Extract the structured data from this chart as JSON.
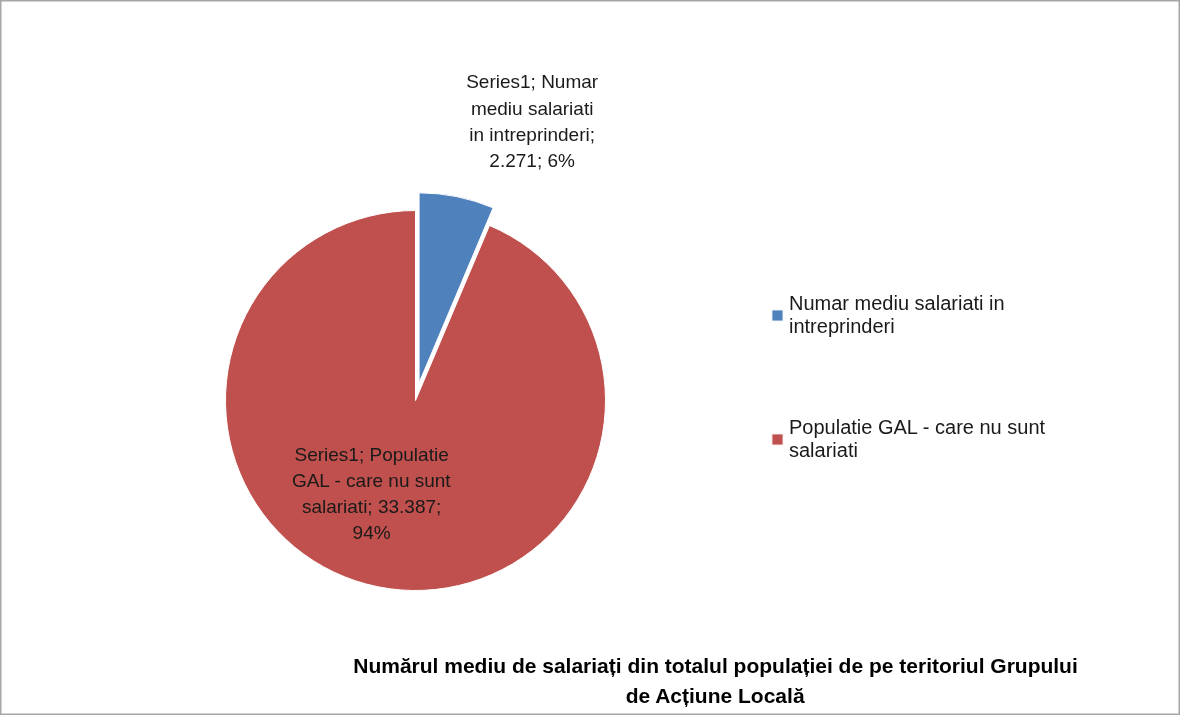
{
  "chart_data": {
    "type": "pie",
    "title": "Numărul mediu de salariați din totalul populației de pe teritoriul Grupului de Acțiune Locală",
    "categories": [
      "Numar mediu salariati in intreprinderi",
      "Populatie GAL - care nu sunt salariati"
    ],
    "values": [
      2271,
      33387
    ],
    "colors": [
      "#4f81bd",
      "#c0504d"
    ],
    "value_labels": [
      "Series1; Numar mediu salariati in intreprinderi; 2.271; 6%",
      "Series1; Populatie GAL - care nu sunt salariati; 33.387; 94%"
    ],
    "legend": "right"
  }
}
